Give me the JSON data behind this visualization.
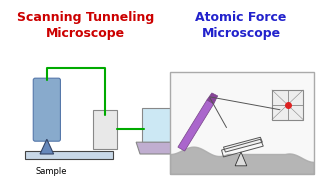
{
  "title_stm": "Scanning Tunneling\nMicroscope",
  "title_afm": "Atomic Force\nMicroscope",
  "title_stm_color": "#cc0000",
  "title_afm_color": "#2222cc",
  "bg_color": "#ffffff",
  "sample_label": "Sample"
}
